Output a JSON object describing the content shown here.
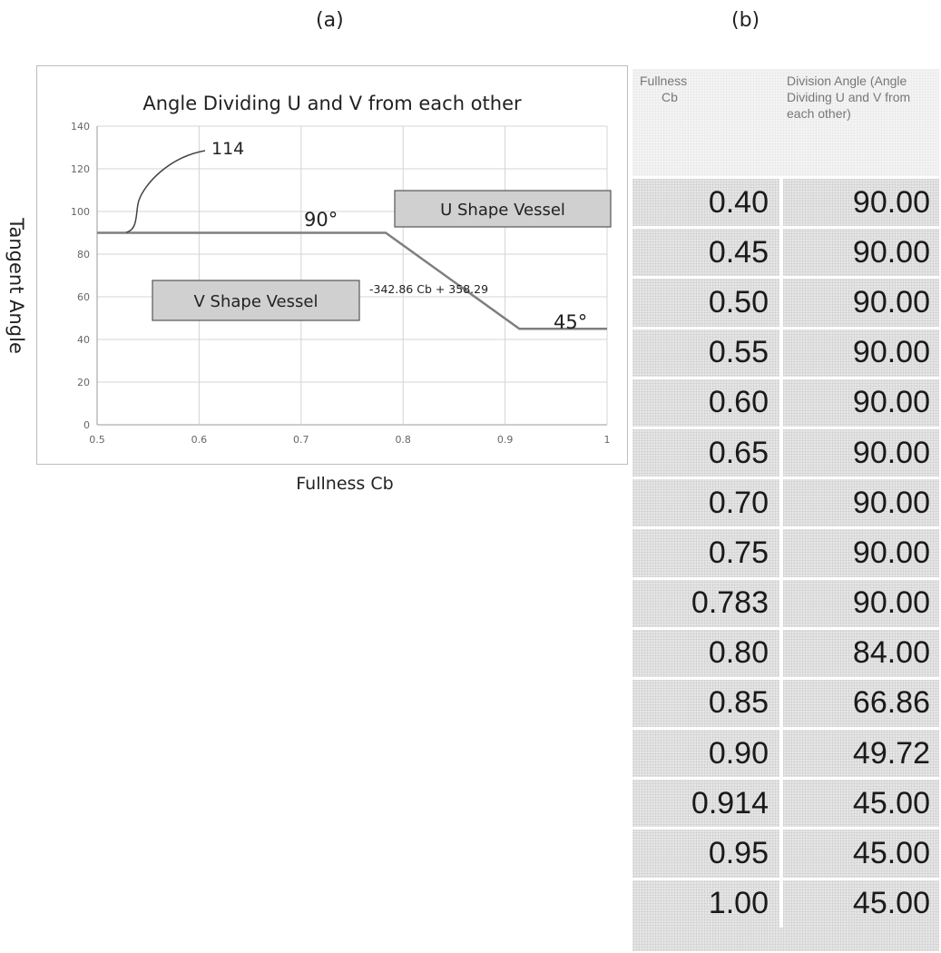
{
  "panels": {
    "a": "(a)",
    "b": "(b)"
  },
  "chart_data": {
    "type": "line",
    "title": "Angle Dividing U and V from each other",
    "xlabel": "Fullness Cb",
    "ylabel": "Tangent Angle",
    "xlim": [
      0.5,
      1
    ],
    "ylim": [
      0,
      140
    ],
    "xticks": [
      "0.5",
      "0.6",
      "0.7",
      "0.8",
      "0.9",
      "1"
    ],
    "yticks": [
      "0",
      "20",
      "40",
      "60",
      "80",
      "100",
      "120",
      "140"
    ],
    "grid": true,
    "series": [
      {
        "x": [
          0.5,
          0.783,
          0.914,
          1.0
        ],
        "y": [
          90,
          90,
          45,
          45
        ],
        "color": "#7f7f7f"
      }
    ],
    "annotations": {
      "reference_numeral": "114",
      "angle_90": "90°",
      "angle_45": "45°",
      "equation": "-342.86 Cb + 358.29",
      "u_box": "U Shape Vessel",
      "v_box": "V Shape Vessel"
    }
  },
  "table": {
    "header_col1_line1": "Fullness",
    "header_col1_line2": "Cb",
    "header_col2": "Division Angle (Angle Dividing U and V from each other)",
    "rows": [
      [
        "0.40",
        "90.00"
      ],
      [
        "0.45",
        "90.00"
      ],
      [
        "0.50",
        "90.00"
      ],
      [
        "0.55",
        "90.00"
      ],
      [
        "0.60",
        "90.00"
      ],
      [
        "0.65",
        "90.00"
      ],
      [
        "0.70",
        "90.00"
      ],
      [
        "0.75",
        "90.00"
      ],
      [
        "0.783",
        "90.00"
      ],
      [
        "0.80",
        "84.00"
      ],
      [
        "0.85",
        "66.86"
      ],
      [
        "0.90",
        "49.72"
      ],
      [
        "0.914",
        "45.00"
      ],
      [
        "0.95",
        "45.00"
      ],
      [
        "1.00",
        "45.00"
      ]
    ]
  }
}
